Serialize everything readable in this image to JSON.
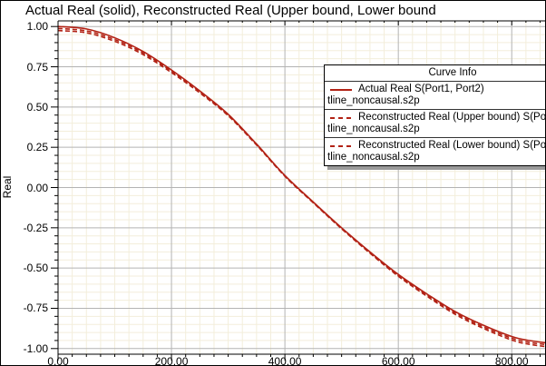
{
  "window": {
    "title": "Actual Real (solid), Reconstructed Real (Upper bound, Lower bound"
  },
  "y_axis_title": "Real",
  "legend": {
    "title": "Curve Info",
    "entries": [
      {
        "label": "Actual Real S(Port1, Port2)",
        "file": "tline_noncausal.s2p",
        "style": "solid"
      },
      {
        "label": "Reconstructed Real (Upper bound) S(Po",
        "file": "tline_noncausal.s2p",
        "style": "dashed"
      },
      {
        "label": "Reconstructed Real (Lower bound) S(Po",
        "file": "tline_noncausal.s2p",
        "style": "dashed"
      }
    ]
  },
  "chart_data": {
    "type": "line",
    "title": "Actual Real (solid), Reconstructed Real (Upper bound, Lower bound",
    "xlabel": "",
    "ylabel": "Real",
    "grid": "on",
    "legend_position": "upper right",
    "x": [
      0,
      50,
      100,
      150,
      200,
      250,
      300,
      350,
      400,
      450,
      500,
      550,
      600,
      650,
      700,
      750,
      800,
      830,
      862
    ],
    "series": [
      {
        "name": "Actual Real S(Port1, Port2)",
        "style": "solid",
        "values": [
          1.0,
          0.985,
          0.93,
          0.845,
          0.73,
          0.6,
          0.455,
          0.27,
          0.075,
          -0.09,
          -0.25,
          -0.4,
          -0.54,
          -0.66,
          -0.77,
          -0.855,
          -0.925,
          -0.95,
          -0.965
        ]
      },
      {
        "name": "Reconstructed Real (Upper bound) S(Po",
        "style": "dashed",
        "values": [
          0.988,
          0.973,
          0.919,
          0.836,
          0.722,
          0.594,
          0.45,
          0.266,
          0.072,
          -0.093,
          -0.254,
          -0.404,
          -0.546,
          -0.667,
          -0.778,
          -0.865,
          -0.936,
          -0.961,
          -0.976
        ]
      },
      {
        "name": "Reconstructed Real (Lower bound) S(Po",
        "style": "dashed",
        "values": [
          0.975,
          0.961,
          0.908,
          0.826,
          0.714,
          0.588,
          0.446,
          0.264,
          0.07,
          -0.095,
          -0.256,
          -0.408,
          -0.551,
          -0.674,
          -0.787,
          -0.875,
          -0.947,
          -0.973,
          -0.989
        ]
      }
    ],
    "x_axis": {
      "min": 0,
      "max": 862,
      "major_step": 200,
      "minor_step": 25,
      "major_ticks": [
        0,
        200,
        400,
        600,
        800
      ],
      "tick_labels": [
        "0.00",
        "200.00",
        "400.00",
        "600.00",
        "800.00"
      ]
    },
    "y_axis": {
      "min": -1.035,
      "max": 1.035,
      "major_step": 0.25,
      "minor_step": 0.05,
      "major_ticks": [
        1.0,
        0.75,
        0.5,
        0.25,
        0.0,
        -0.25,
        -0.5,
        -0.75,
        -1.0
      ],
      "tick_labels": [
        "1.00",
        "0.75",
        "0.50",
        "0.25",
        "0.00",
        "-0.25",
        "-0.50",
        "-0.75",
        "-1.00"
      ]
    },
    "colors": {
      "curve": "#b22215",
      "major_grid": "#b3b3b3",
      "minor_grid": "#f3eedb",
      "axis": "#000000"
    }
  }
}
